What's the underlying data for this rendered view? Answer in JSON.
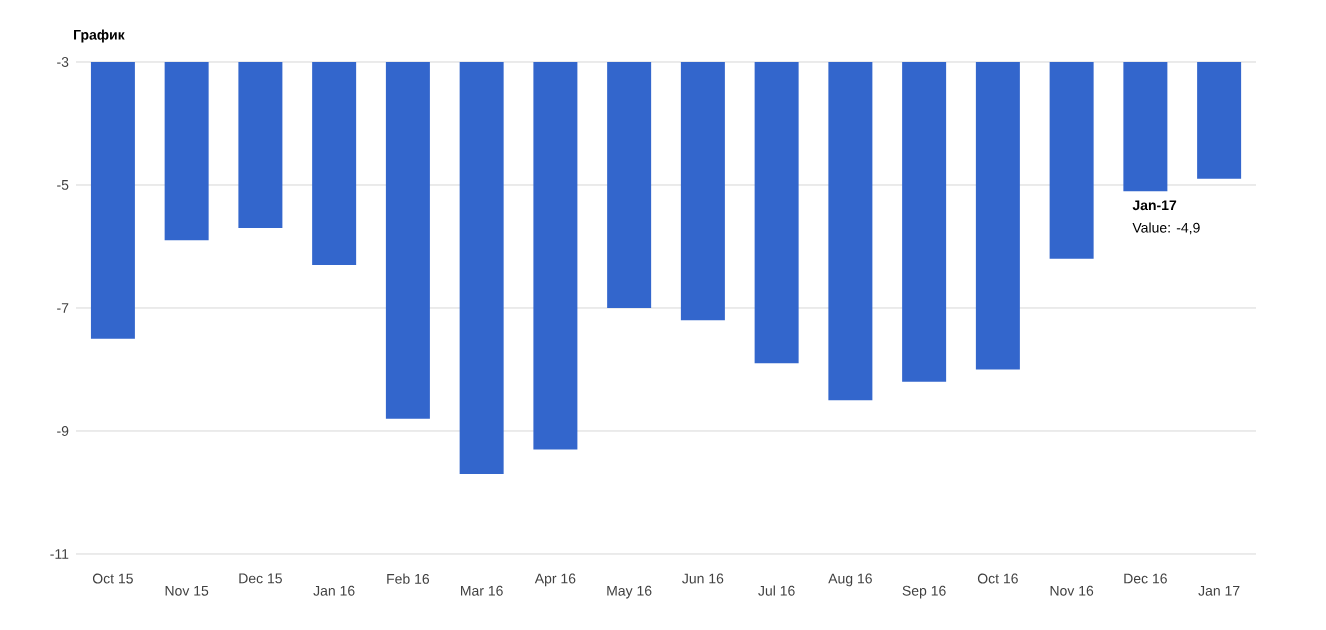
{
  "chart_data": {
    "type": "bar",
    "title": "График",
    "categories": [
      "Oct 15",
      "Nov 15",
      "Dec 15",
      "Jan 16",
      "Feb 16",
      "Mar 16",
      "Apr 16",
      "May 16",
      "Jun 16",
      "Jul 16",
      "Aug 16",
      "Sep 16",
      "Oct 16",
      "Nov 16",
      "Dec 16",
      "Jan 17"
    ],
    "values": [
      -7.5,
      -5.9,
      -5.7,
      -6.3,
      -8.8,
      -9.7,
      -9.3,
      -7.0,
      -7.2,
      -7.9,
      -8.5,
      -8.2,
      -8.0,
      -6.2,
      -5.1,
      -4.9
    ],
    "color": "#3366cc",
    "ylim": [
      -11,
      -3
    ],
    "yticks": [
      -3,
      -5,
      -7,
      -9,
      -11
    ],
    "grid": "y",
    "annotations": [
      "Jan-17",
      "Value: -4,9"
    ]
  }
}
